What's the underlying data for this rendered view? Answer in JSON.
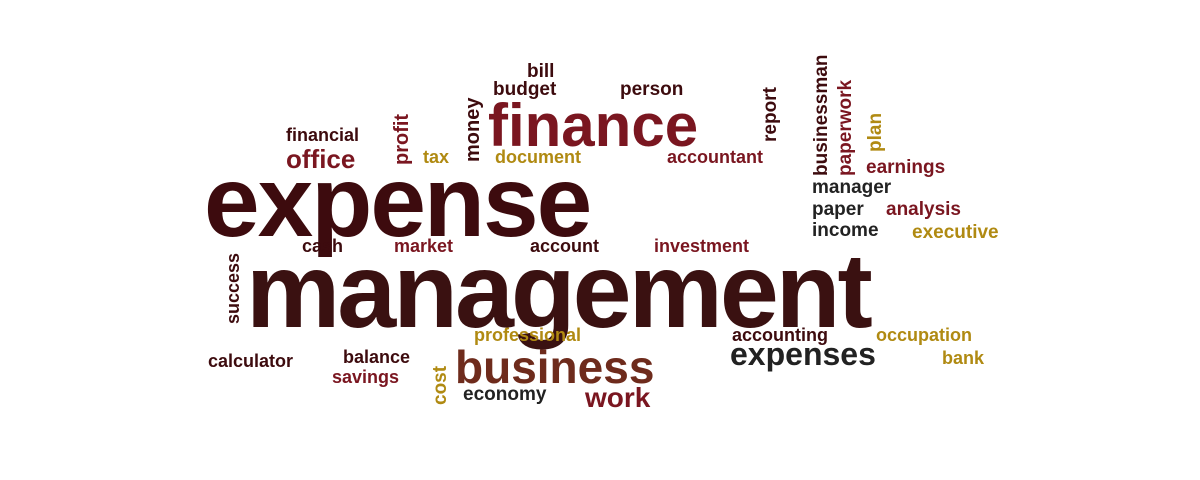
{
  "words": {
    "bill": "bill",
    "budget": "budget",
    "person": "person",
    "financial": "financial",
    "profit": "profit",
    "money": "money",
    "finance": "finance",
    "report": "report",
    "businessman": "businessman",
    "paperwork": "paperwork",
    "plan": "plan",
    "office": "office",
    "tax": "tax",
    "document": "document",
    "accountant": "accountant",
    "earnings": "earnings",
    "expense": "expense",
    "manager": "manager",
    "paper": "paper",
    "analysis": "analysis",
    "income": "income",
    "executive": "executive",
    "cash": "cash",
    "market": "market",
    "account": "account",
    "investment": "investment",
    "success": "success",
    "management": "management",
    "professional": "professional",
    "accounting": "accounting",
    "occupation": "occupation",
    "calculator": "calculator",
    "balance": "balance",
    "savings": "savings",
    "cost": "cost",
    "business": "business",
    "expenses": "expenses",
    "bank": "bank",
    "economy": "economy",
    "work": "work"
  },
  "colors": {
    "dark_maroon": "#3d0b0e",
    "red": "#7a1620",
    "gold": "#b08a12",
    "near_black": "#222222",
    "brown": "#6e2b1c"
  }
}
